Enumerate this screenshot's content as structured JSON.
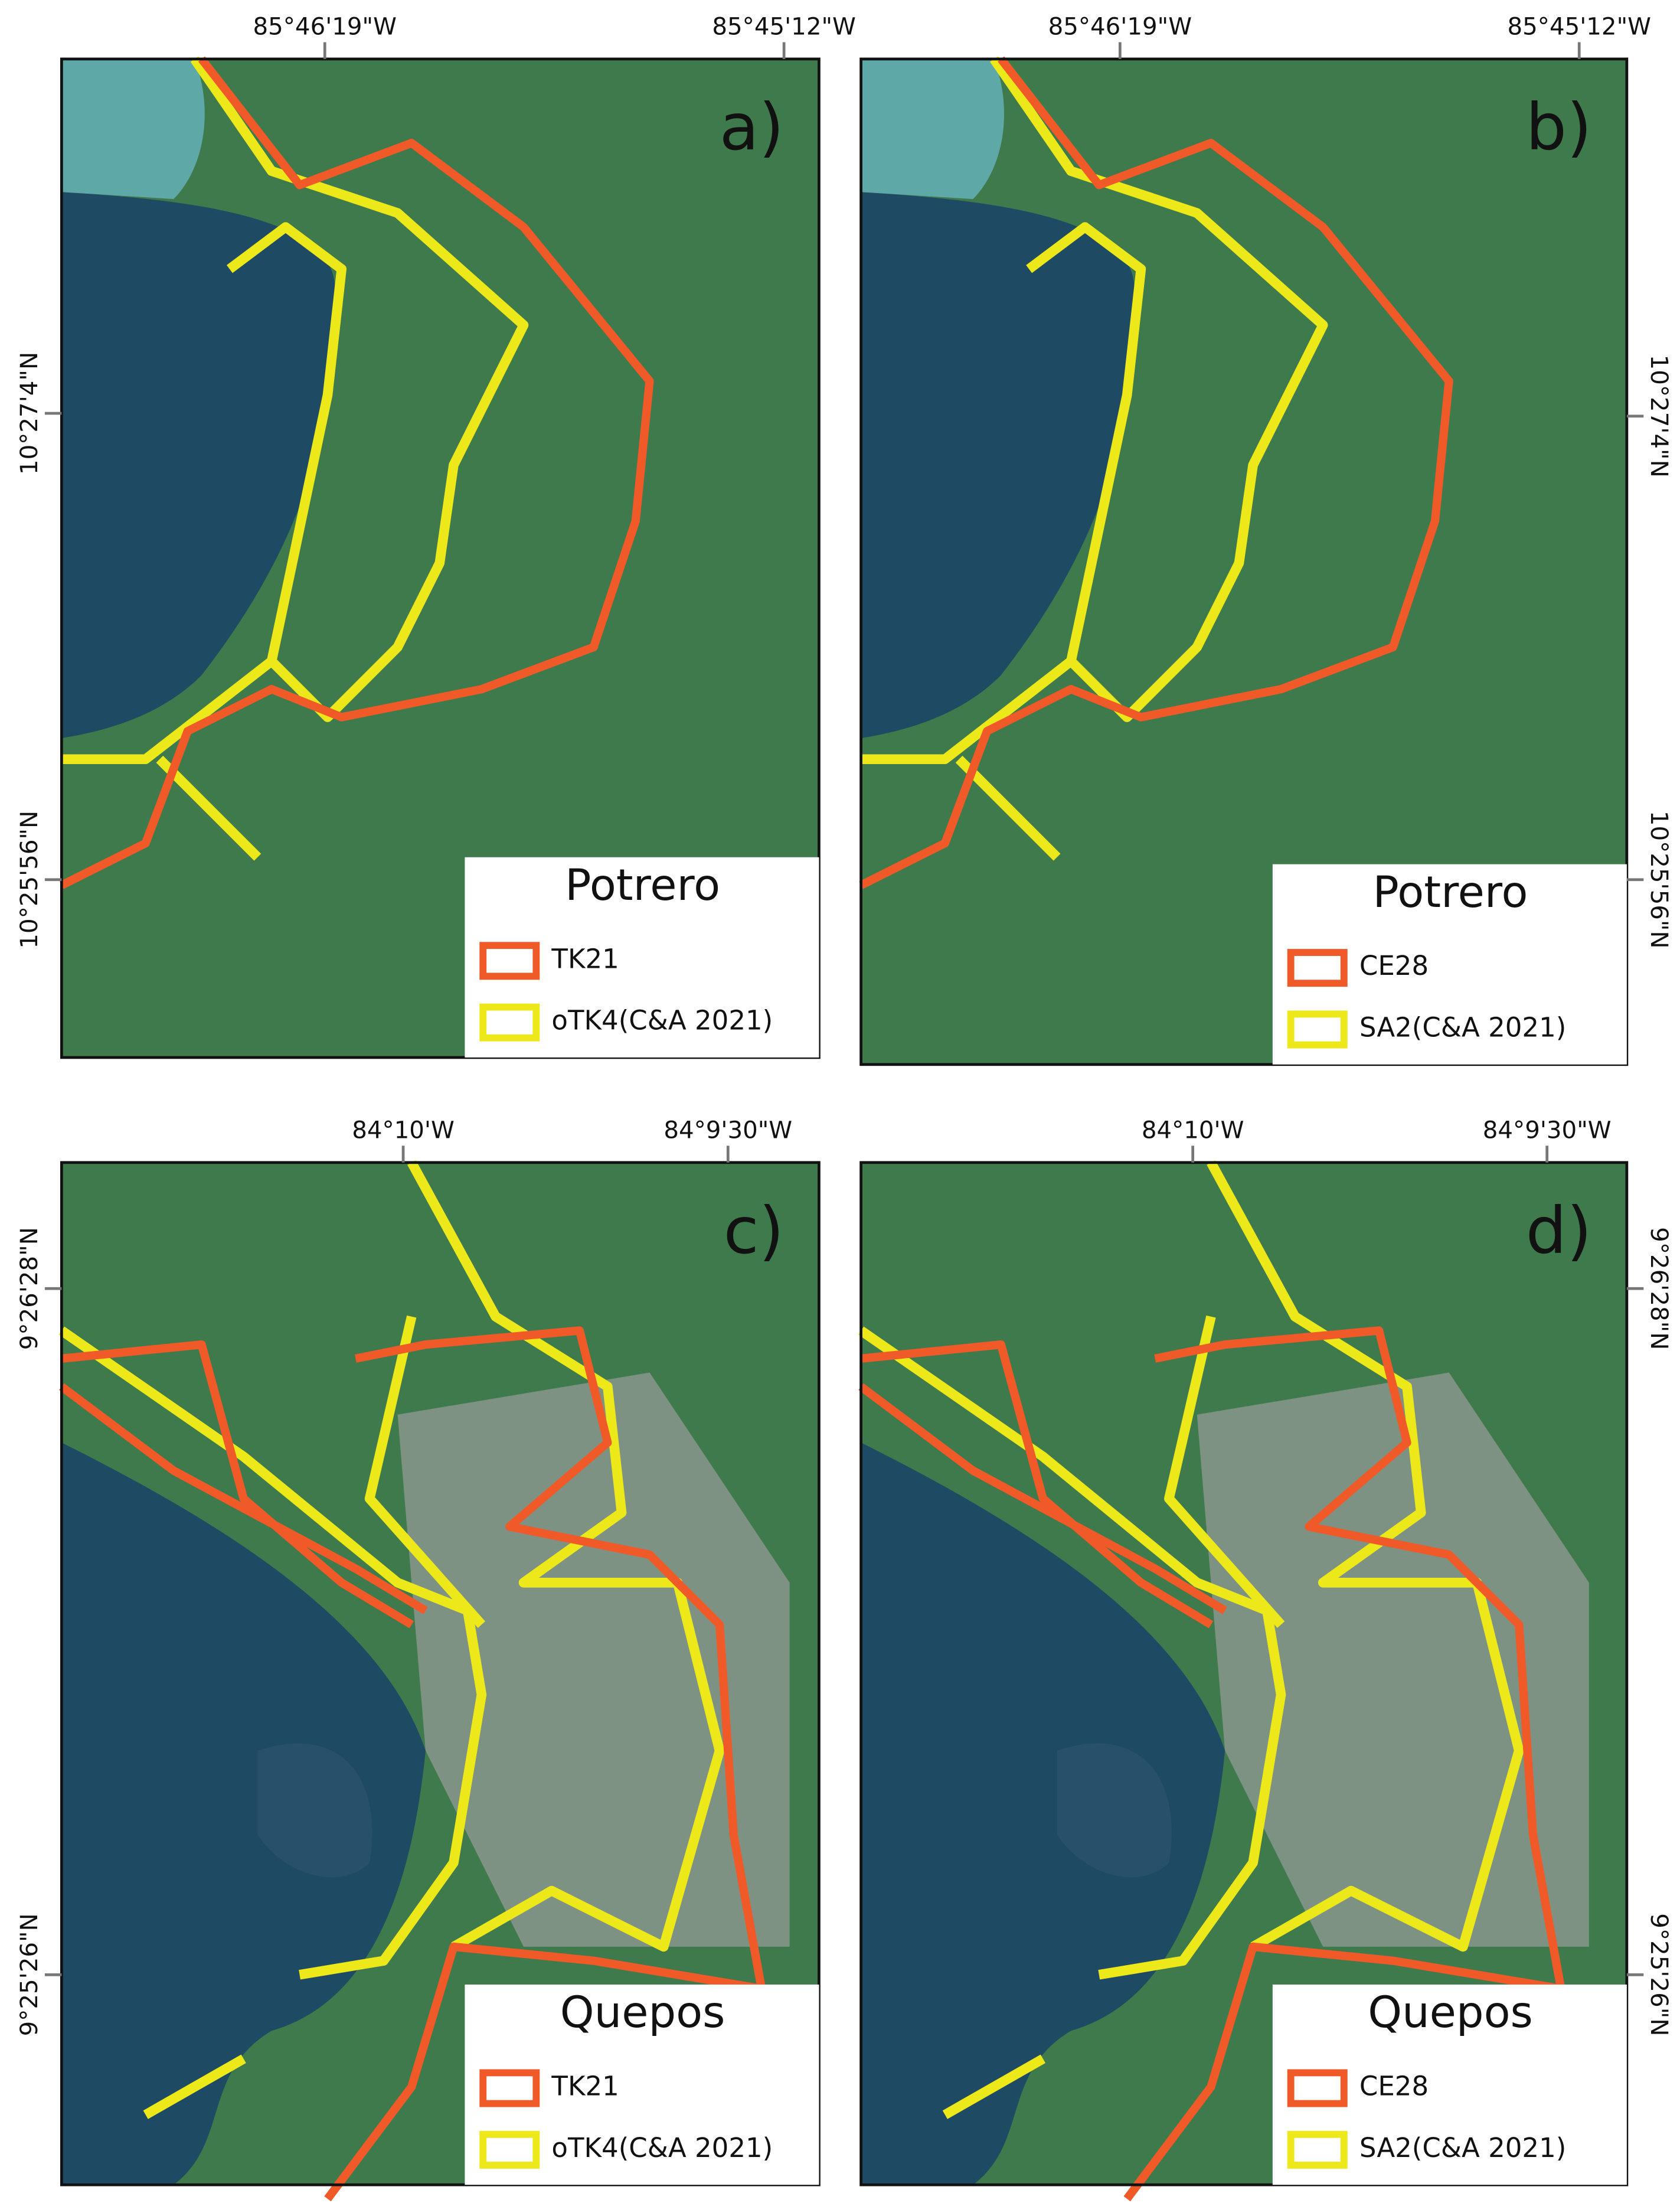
{
  "panels": [
    {
      "label": "a)",
      "place": "Potrero",
      "top_coords": [
        "85°46'19\"W",
        "85°45'12\"W"
      ],
      "side_coords": [
        "10°27'4\"N",
        "10°25'56\"N"
      ],
      "legend": [
        {
          "name": "TK21",
          "color": "#f05a28"
        },
        {
          "name": "oTK4(C&A 2021)",
          "color": "#ece81a"
        }
      ]
    },
    {
      "label": "b)",
      "place": "Potrero",
      "top_coords": [
        "85°46'19\"W",
        "85°45'12\"W"
      ],
      "side_coords": [
        "10°27'4\"N",
        "10°25'56\"N"
      ],
      "legend": [
        {
          "name": "CE28",
          "color": "#f05a28"
        },
        {
          "name": "SA2(C&A 2021)",
          "color": "#ece81a"
        }
      ]
    },
    {
      "label": "c)",
      "place": "Quepos",
      "top_coords": [
        "84°10'W",
        "84°9'30\"W"
      ],
      "side_coords": [
        "9°26'28\"N",
        "9°25'26\"N"
      ],
      "legend": [
        {
          "name": "TK21",
          "color": "#f05a28"
        },
        {
          "name": "oTK4(C&A 2021)",
          "color": "#ece81a"
        }
      ]
    },
    {
      "label": "d)",
      "place": "Quepos",
      "top_coords": [
        "84°10'W",
        "84°9'30\"W"
      ],
      "side_coords": [
        "9°26'28\"N",
        "9°25'26\"N"
      ],
      "legend": [
        {
          "name": "CE28",
          "color": "#f05a28"
        },
        {
          "name": "SA2(C&A 2021)",
          "color": "#ece81a"
        }
      ]
    }
  ]
}
